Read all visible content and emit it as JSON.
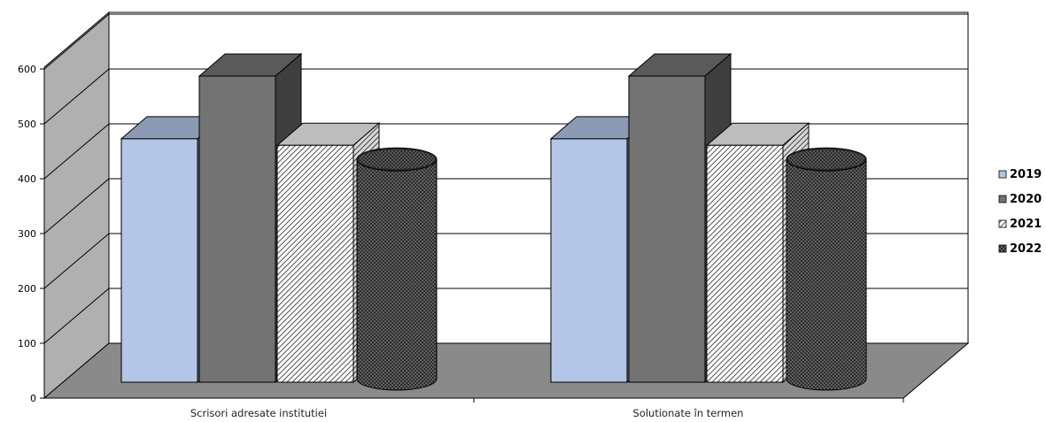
{
  "chart_data": {
    "type": "bar",
    "categories": [
      "Scrisori adresate institutiei",
      "Solutionate în termen"
    ],
    "series": [
      {
        "name": "2019",
        "values": [
          450,
          450
        ],
        "shape": "box",
        "fill": "#b4c6e7",
        "pattern": "solid"
      },
      {
        "name": "2020",
        "values": [
          566,
          566
        ],
        "shape": "box",
        "fill": "#737373",
        "pattern": "solid"
      },
      {
        "name": "2021",
        "values": [
          438,
          438
        ],
        "shape": "box",
        "fill": "#ffffff",
        "pattern": "diagonal-hatch"
      },
      {
        "name": "2022",
        "values": [
          412,
          412
        ],
        "shape": "cylinder",
        "fill": "#3a3a3a",
        "pattern": "dotted"
      }
    ],
    "y_ticks": [
      "0",
      "100",
      "200",
      "300",
      "400",
      "500",
      "600"
    ],
    "ylim": [
      0,
      600
    ],
    "title": "",
    "xlabel": "",
    "ylabel": "",
    "grid": true,
    "legend_position": "right",
    "style": "3d-column",
    "colors": {
      "back_wall": "#ffffff",
      "side_wall": "#b0b0b0",
      "floor": "#8a8a8a",
      "gridline": "#000000"
    }
  }
}
